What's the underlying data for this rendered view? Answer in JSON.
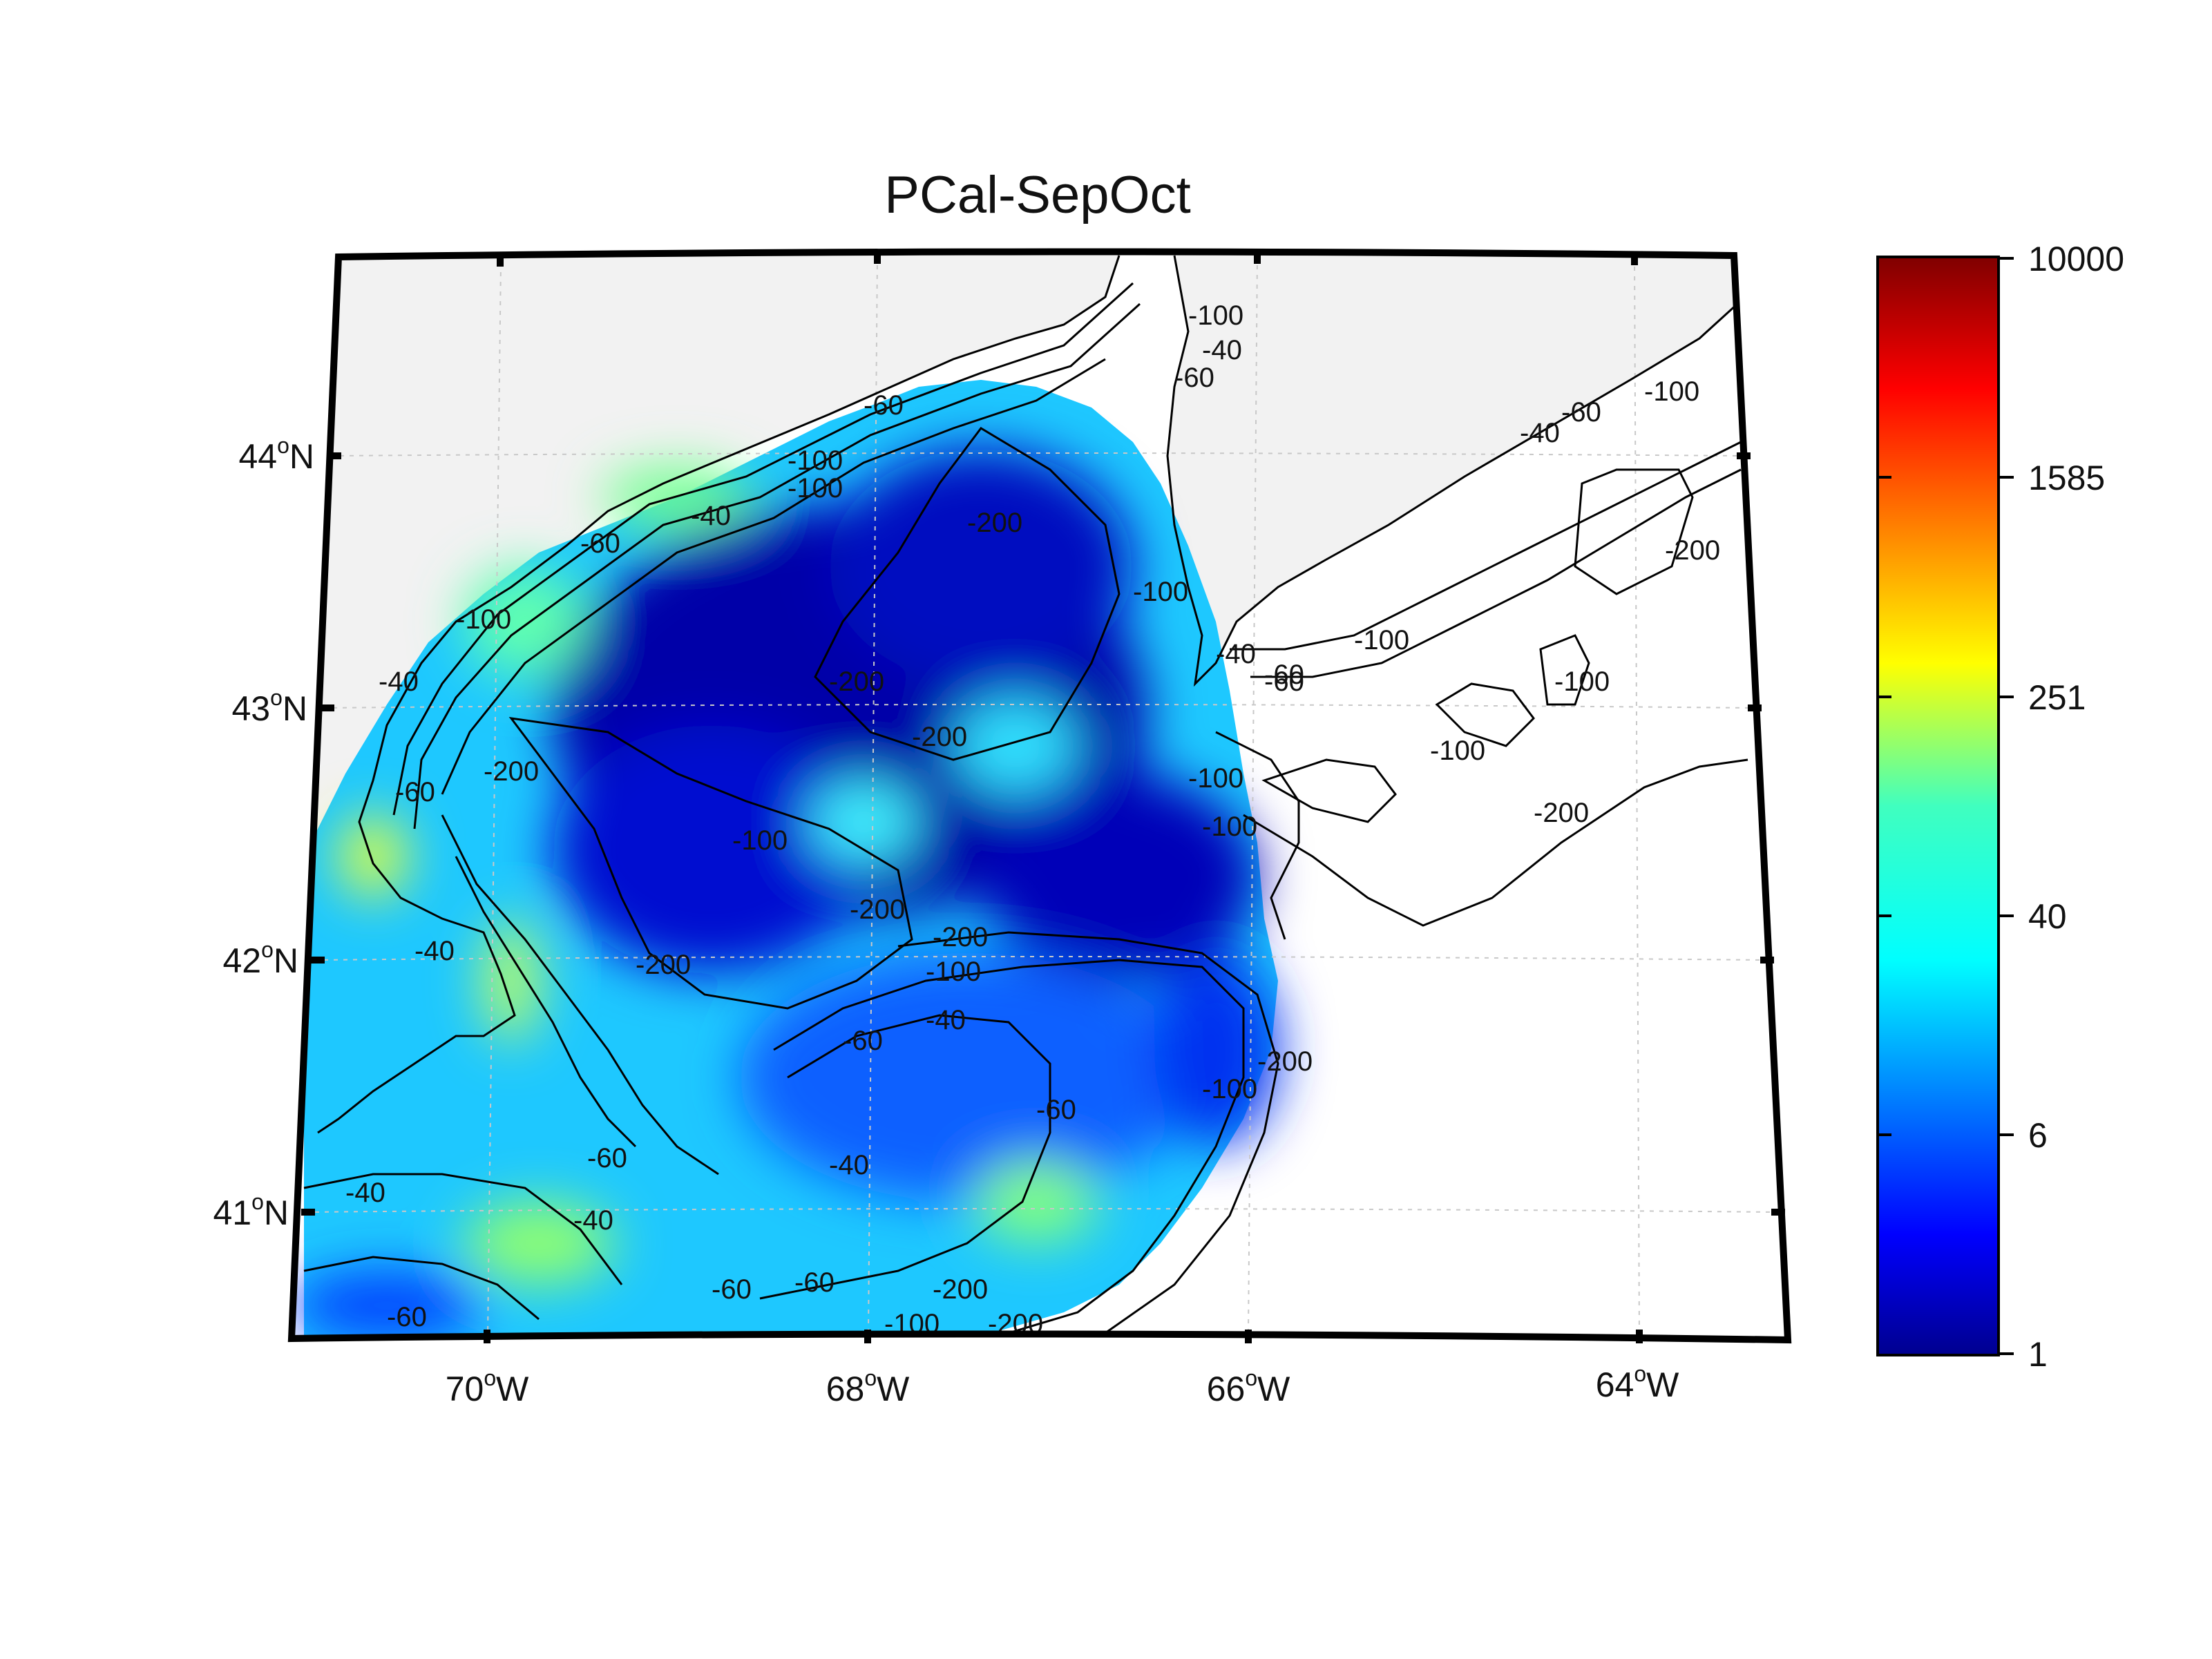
{
  "title": "PCal-SepOct",
  "map": {
    "longitude_ticks": [
      {
        "deg": "70",
        "hemi": "W"
      },
      {
        "deg": "68",
        "hemi": "W"
      },
      {
        "deg": "66",
        "hemi": "W"
      },
      {
        "deg": "64",
        "hemi": "W"
      }
    ],
    "latitude_ticks": [
      {
        "deg": "44",
        "hemi": "N"
      },
      {
        "deg": "43",
        "hemi": "N"
      },
      {
        "deg": "42",
        "hemi": "N"
      },
      {
        "deg": "41",
        "hemi": "N"
      }
    ],
    "contour_labels": [
      "-40",
      "-60",
      "-100",
      "-200",
      "-40",
      "-60",
      "-100",
      "-200",
      "-200",
      "-200",
      "-200",
      "-100",
      "-100",
      "-100",
      "-60",
      "-40",
      "-200",
      "-100",
      "-100",
      "-200",
      "-40",
      "-60",
      "-60",
      "-40",
      "-60",
      "-200",
      "-100",
      "-40",
      "-60",
      "-40",
      "-60",
      "-100",
      "-60",
      "-100",
      "-200",
      "-100",
      "-200",
      "-100",
      "-60",
      "-40",
      "-100",
      "-60",
      "-40",
      "-40",
      "-60",
      "-100",
      "-200",
      "-60",
      "-100",
      "-200"
    ],
    "colors": {
      "land": "#f2f2f2",
      "frame": "#000000",
      "coastline": "#000000",
      "grid": "#c8c8c8"
    }
  },
  "colorbar": {
    "scale": "log",
    "range": [
      1,
      10000
    ],
    "tick_labels": [
      "10000",
      "1585",
      "251",
      "40",
      "6",
      "1"
    ],
    "colormap": "jet"
  }
}
